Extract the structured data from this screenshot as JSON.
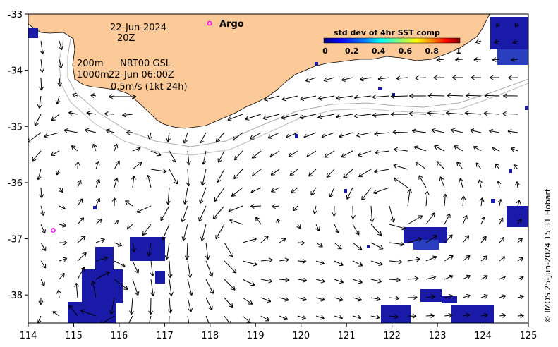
{
  "map": {
    "date": "22-Jun-2024",
    "time": "20Z",
    "depth_200": "200m",
    "depth_1000": "1000m",
    "model": "NRT00 GSL",
    "model_time": "22-Jun 06:00Z",
    "scale_label": "0.5m/s (1kt 24h)",
    "argo_label": "Argo",
    "credit": "© IMOS 25-Jun-2024 15:31 Hobart",
    "lon_range": [
      114,
      125
    ],
    "lat_range": [
      -38.5,
      -33
    ],
    "lon_ticks": [
      "114",
      "115",
      "116",
      "117",
      "118",
      "119",
      "120",
      "121",
      "122",
      "123",
      "124",
      "125"
    ],
    "lat_ticks": [
      "-33",
      "-34",
      "-35",
      "-36",
      "-37",
      "-38"
    ],
    "land_color": "#fcc998",
    "ocean_color": "#ffffff",
    "argo_floats": [
      {
        "lon": 118.0,
        "lat": -33.2
      },
      {
        "lon": 114.55,
        "lat": -36.85
      }
    ]
  },
  "colorbar": {
    "title": "std dev of 4hr SST comp",
    "ticks": [
      "0",
      "0.2",
      "0.4",
      "0.6",
      "0.8",
      "1"
    ],
    "colors": [
      "#00007f",
      "#0000ff",
      "#007fff",
      "#00ffff",
      "#7fff7f",
      "#ffff00",
      "#ff7f00",
      "#ff0000",
      "#7f0000"
    ]
  }
}
